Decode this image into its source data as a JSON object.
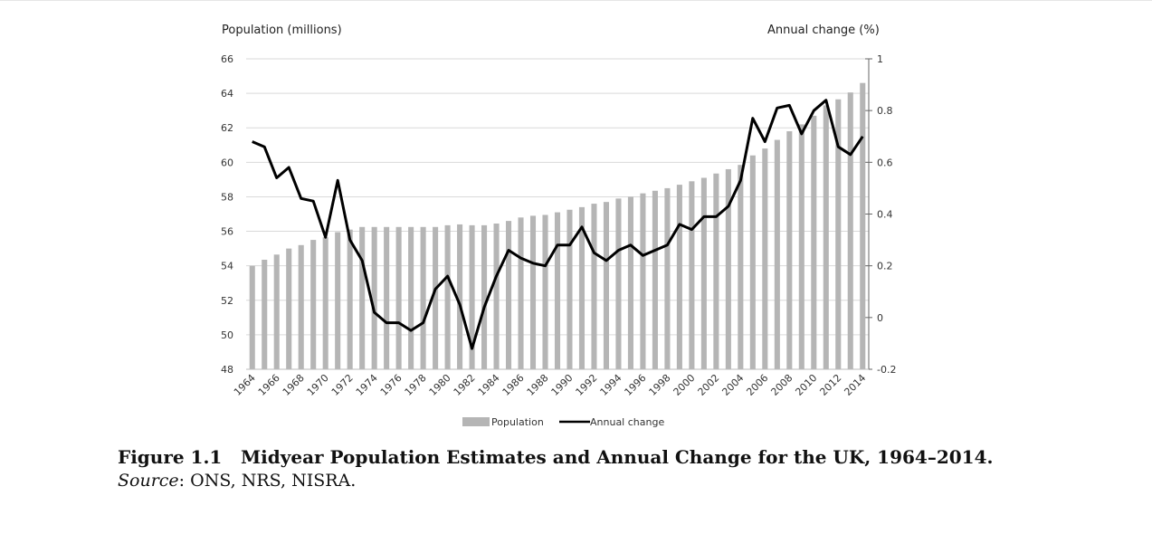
{
  "figure": {
    "number": "Figure 1.1",
    "title": "Midyear Population Estimates and Annual Change for the UK, 1964–2014.",
    "source_label": "Source",
    "source_text": ": ONS, NRS, NISRA."
  },
  "chart_data": {
    "type": "bar+line",
    "title": "",
    "ylabel_left": "Population (millions)",
    "ylabel_right": "Annual change (%)",
    "ylim_left": [
      48,
      66
    ],
    "yticks_left": [
      48,
      50,
      52,
      54,
      56,
      58,
      60,
      62,
      64,
      66
    ],
    "ylim_right": [
      -0.2,
      1
    ],
    "yticks_right": [
      "-0.2",
      "0",
      "0.2",
      "0.4",
      "0.6",
      "0.8",
      "1"
    ],
    "grid": true,
    "legend_position": "bottom",
    "x": [
      1964,
      1965,
      1966,
      1967,
      1968,
      1969,
      1970,
      1971,
      1972,
      1973,
      1974,
      1975,
      1976,
      1977,
      1978,
      1979,
      1980,
      1981,
      1982,
      1983,
      1984,
      1985,
      1986,
      1987,
      1988,
      1989,
      1990,
      1991,
      1992,
      1993,
      1994,
      1995,
      1996,
      1997,
      1998,
      1999,
      2000,
      2001,
      2002,
      2003,
      2004,
      2005,
      2006,
      2007,
      2008,
      2009,
      2010,
      2011,
      2012,
      2013,
      2014
    ],
    "x_tick_labels": [
      "1964",
      "1966",
      "1968",
      "1970",
      "1972",
      "1974",
      "1976",
      "1978",
      "1980",
      "1982",
      "1984",
      "1986",
      "1988",
      "1990",
      "1992",
      "1994",
      "1996",
      "1998",
      "2000",
      "2002",
      "2004",
      "2006",
      "2008",
      "2010",
      "2012",
      "2014"
    ],
    "series": [
      {
        "name": "Population",
        "type": "bar",
        "axis": "left",
        "color": "#b5b5b5",
        "values": [
          54.0,
          54.35,
          54.65,
          55.0,
          55.2,
          55.5,
          55.65,
          55.95,
          56.1,
          56.25,
          56.25,
          56.25,
          56.25,
          56.25,
          56.25,
          56.25,
          56.35,
          56.4,
          56.35,
          56.35,
          56.45,
          56.6,
          56.8,
          56.9,
          56.95,
          57.1,
          57.25,
          57.4,
          57.6,
          57.7,
          57.9,
          58.0,
          58.2,
          58.35,
          58.5,
          58.7,
          58.9,
          59.1,
          59.35,
          59.6,
          59.85,
          60.4,
          60.8,
          61.3,
          61.8,
          62.2,
          62.7,
          63.3,
          63.65,
          64.05,
          64.6
        ]
      },
      {
        "name": "Annual change",
        "type": "line",
        "axis": "right",
        "color": "#000000",
        "values": [
          0.68,
          0.66,
          0.54,
          0.58,
          0.46,
          0.45,
          0.31,
          0.53,
          0.3,
          0.22,
          0.02,
          -0.02,
          -0.02,
          -0.05,
          -0.02,
          0.11,
          0.16,
          0.05,
          -0.12,
          0.04,
          0.16,
          0.26,
          0.23,
          0.21,
          0.2,
          0.28,
          0.28,
          0.35,
          0.25,
          0.22,
          0.26,
          0.28,
          0.24,
          0.26,
          0.28,
          0.36,
          0.34,
          0.39,
          0.39,
          0.43,
          0.53,
          0.77,
          0.68,
          0.81,
          0.82,
          0.71,
          0.8,
          0.84,
          0.66,
          0.63,
          0.7
        ]
      }
    ]
  }
}
